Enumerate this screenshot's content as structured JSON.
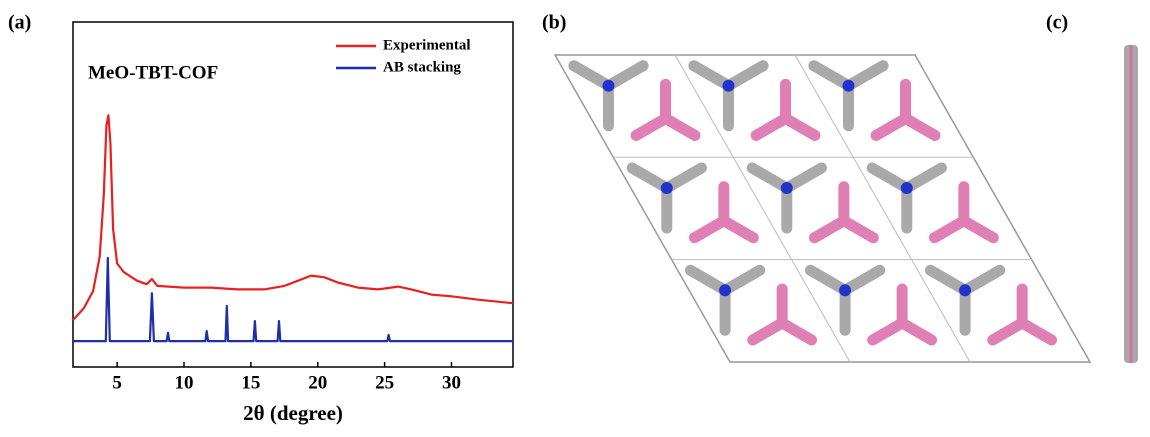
{
  "panel_labels": [
    "(a)",
    "(b)",
    "(c)"
  ],
  "chart_data": {
    "type": "line",
    "title": "MeO-TBT-COF",
    "x_label": "2θ (degree)",
    "xlim": [
      1.7,
      34.6
    ],
    "xticks": [
      5,
      10,
      15,
      20,
      25,
      30
    ],
    "ylim": [
      0,
      100
    ],
    "legend": "upper right",
    "series": [
      {
        "name": "Experimental",
        "color": "#e8201f",
        "x": [
          1.7,
          2.5,
          3.2,
          3.7,
          4.0,
          4.2,
          4.35,
          4.5,
          4.7,
          5.0,
          5.5,
          6.5,
          7.2,
          7.6,
          8.0,
          10,
          12,
          14,
          16,
          17.5,
          18.5,
          19.5,
          20.5,
          21.5,
          23,
          24.5,
          26,
          27,
          28.5,
          30,
          32,
          34.6
        ],
        "values": [
          13.6,
          17,
          22,
          32,
          50,
          70,
          73,
          65,
          40,
          30,
          27.5,
          25,
          24,
          25.5,
          23.5,
          23,
          23,
          22.5,
          22.5,
          23.5,
          25,
          26.5,
          26,
          24.5,
          23,
          22.5,
          23.3,
          22.5,
          21,
          20.5,
          19.5,
          18.5
        ]
      },
      {
        "name": "AB stacking",
        "color": "#1f2fa8",
        "x": [
          1.7,
          4.15,
          4.3,
          4.45,
          7.45,
          7.6,
          7.75,
          8.7,
          8.8,
          8.9,
          11.6,
          11.7,
          11.8,
          13.1,
          13.2,
          13.3,
          15.2,
          15.3,
          15.4,
          17.0,
          17.1,
          17.2,
          25.2,
          25.3,
          25.4,
          34.6
        ],
        "values": [
          7.5,
          7.5,
          31.6,
          7.5,
          7.5,
          21.4,
          7.5,
          7.5,
          9.9,
          7.5,
          7.5,
          10.4,
          7.5,
          7.5,
          17.7,
          7.5,
          7.5,
          13.3,
          7.5,
          7.5,
          13.3,
          7.5,
          7.5,
          9.3,
          7.5,
          7.5
        ]
      }
    ]
  }
}
